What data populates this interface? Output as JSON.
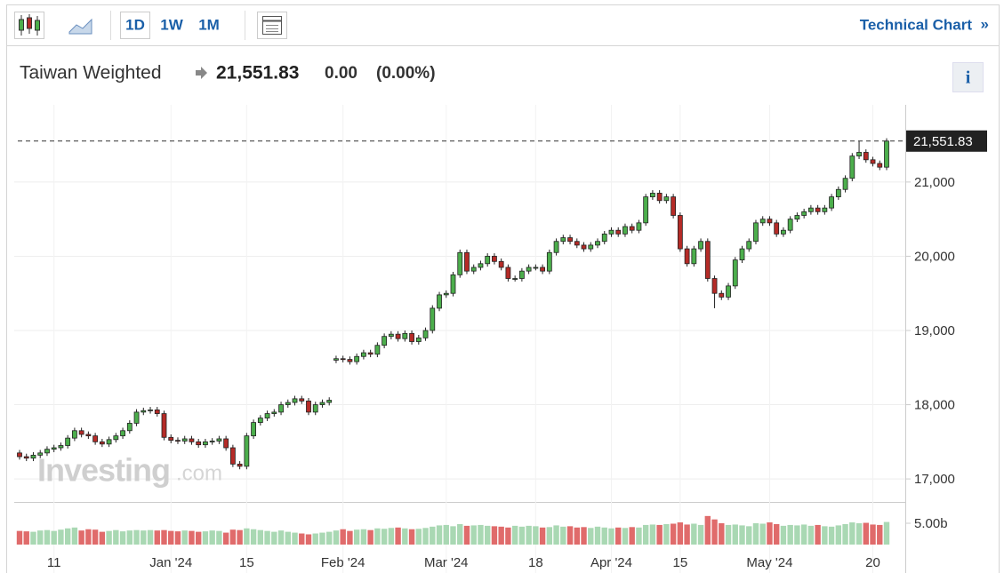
{
  "toolbar": {
    "periods": [
      "1D",
      "1W",
      "1M"
    ],
    "link": "Technical Chart",
    "link_arrow": "»",
    "info": "i"
  },
  "header": {
    "name": "Taiwan Weighted",
    "change": "0.00",
    "change_pct": "(0.00%)"
  },
  "watermark": {
    "brand": "Investing",
    "suffix": ".com"
  },
  "chart_data": {
    "type": "candlestick",
    "categories": [
      null,
      null,
      null,
      null,
      null,
      "11",
      null,
      null,
      null,
      null,
      null,
      null,
      null,
      null,
      null,
      null,
      null,
      null,
      null,
      null,
      null,
      null,
      "Jan '24",
      null,
      null,
      null,
      null,
      null,
      null,
      null,
      null,
      null,
      null,
      "15",
      null,
      null,
      null,
      null,
      null,
      null,
      null,
      null,
      null,
      null,
      null,
      null,
      null,
      "Feb '24",
      null,
      null,
      null,
      null,
      null,
      null,
      null,
      null,
      null,
      null,
      null,
      null,
      null,
      null,
      "Mar '24",
      null,
      null,
      null,
      null,
      null,
      null,
      null,
      null,
      null,
      null,
      null,
      null,
      "18",
      null,
      null,
      null,
      null,
      null,
      null,
      null,
      null,
      null,
      null,
      "Apr '24",
      null,
      null,
      null,
      null,
      null,
      null,
      null,
      null,
      null,
      "15",
      null,
      null,
      null,
      null,
      null,
      null,
      null,
      null,
      null,
      null,
      null,
      null,
      "May '24",
      null,
      null,
      null,
      null,
      null,
      null,
      null,
      null,
      null,
      null,
      null,
      null,
      null,
      null,
      "20",
      null,
      null
    ],
    "open": [
      17350,
      17300,
      17280,
      17320,
      17350,
      17400,
      17420,
      17450,
      17550,
      17650,
      17600,
      17580,
      17500,
      17470,
      17530,
      17580,
      17650,
      17750,
      17900,
      17920,
      17930,
      17880,
      17560,
      17520,
      17510,
      17540,
      17500,
      17460,
      17500,
      17510,
      17540,
      17420,
      17200,
      17170,
      17580,
      17760,
      17820,
      17880,
      17900,
      18000,
      18030,
      18080,
      18050,
      17900,
      18000,
      18030,
      18600,
      18620,
      18610,
      18580,
      18650,
      18700,
      18680,
      18800,
      18920,
      18950,
      18890,
      18960,
      18850,
      18900,
      19000,
      19300,
      19480,
      19500,
      19750,
      20050,
      19800,
      19850,
      19900,
      20000,
      19930,
      19850,
      19700,
      19700,
      19800,
      19850,
      19850,
      19800,
      20050,
      20200,
      20250,
      20200,
      20150,
      20100,
      20150,
      20200,
      20300,
      20350,
      20300,
      20400,
      20350,
      20450,
      20800,
      20850,
      20750,
      20800,
      20550,
      20100,
      19900,
      20100,
      20200,
      19700,
      19500,
      19450,
      19600,
      19950,
      20100,
      20200,
      20450,
      20500,
      20450,
      20300,
      20350,
      20500,
      20550,
      20600,
      20650,
      20600,
      20650,
      20800,
      20900,
      21050,
      21350,
      21400,
      21300,
      21250,
      21200
    ],
    "high": [
      17390,
      17340,
      17360,
      17390,
      17440,
      17460,
      17490,
      17590,
      17690,
      17690,
      17640,
      17620,
      17540,
      17570,
      17620,
      17690,
      17790,
      17940,
      17960,
      17970,
      17970,
      17920,
      17600,
      17560,
      17580,
      17580,
      17540,
      17540,
      17550,
      17580,
      17580,
      17460,
      17240,
      17620,
      17800,
      17860,
      17920,
      17940,
      18040,
      18070,
      18120,
      18120,
      18090,
      18040,
      18070,
      18100,
      18660,
      18660,
      18650,
      18690,
      18740,
      18740,
      18840,
      18960,
      18990,
      18990,
      19000,
      19000,
      18940,
      19040,
      19340,
      19520,
      19540,
      19790,
      20090,
      20090,
      19890,
      19940,
      20040,
      20040,
      19970,
      19890,
      19740,
      19840,
      19890,
      19890,
      19890,
      20090,
      20240,
      20290,
      20290,
      20240,
      20190,
      20190,
      20240,
      20340,
      20390,
      20390,
      20440,
      20440,
      20490,
      20840,
      20890,
      20890,
      20840,
      20840,
      20590,
      20140,
      20140,
      20240,
      20240,
      19740,
      19540,
      19640,
      19990,
      20140,
      20240,
      20490,
      20540,
      20540,
      20490,
      20390,
      20540,
      20590,
      20640,
      20690,
      20690,
      20690,
      20840,
      20940,
      21090,
      21390,
      21550,
      21440,
      21340,
      21290,
      21590
    ],
    "low": [
      17260,
      17240,
      17240,
      17280,
      17310,
      17360,
      17380,
      17410,
      17510,
      17560,
      17540,
      17460,
      17430,
      17430,
      17490,
      17540,
      17610,
      17710,
      17860,
      17880,
      17840,
      17520,
      17480,
      17470,
      17470,
      17460,
      17420,
      17420,
      17460,
      17470,
      17380,
      17160,
      17130,
      17130,
      17540,
      17720,
      17780,
      17840,
      17860,
      17960,
      17990,
      18010,
      17860,
      17860,
      17960,
      17990,
      18560,
      18570,
      18540,
      18540,
      18610,
      18640,
      18640,
      18760,
      18880,
      18850,
      18850,
      18810,
      18810,
      18860,
      18960,
      19260,
      19440,
      19460,
      19710,
      19760,
      19760,
      19810,
      19860,
      19890,
      19810,
      19660,
      19660,
      19660,
      19760,
      19810,
      19760,
      19760,
      20010,
      20160,
      20160,
      20110,
      20060,
      20060,
      20110,
      20160,
      20260,
      20260,
      20260,
      20310,
      20310,
      20410,
      20760,
      20710,
      20710,
      20510,
      20060,
      19860,
      19860,
      20060,
      19660,
      19300,
      19410,
      19410,
      19560,
      19910,
      20060,
      20160,
      20410,
      20410,
      20260,
      20260,
      20310,
      20460,
      20510,
      20560,
      20560,
      20560,
      20610,
      20760,
      20860,
      21010,
      21310,
      21260,
      21210,
      21160,
      21160
    ],
    "close": [
      17300,
      17280,
      17320,
      17350,
      17400,
      17420,
      17450,
      17550,
      17650,
      17600,
      17580,
      17500,
      17470,
      17530,
      17580,
      17650,
      17750,
      17900,
      17920,
      17930,
      17880,
      17560,
      17520,
      17510,
      17540,
      17500,
      17460,
      17500,
      17510,
      17540,
      17420,
      17200,
      17170,
      17580,
      17760,
      17820,
      17880,
      17900,
      18000,
      18030,
      18080,
      18050,
      17900,
      18000,
      18030,
      18060,
      18620,
      18610,
      18580,
      18650,
      18700,
      18680,
      18800,
      18920,
      18950,
      18890,
      18960,
      18850,
      18900,
      19000,
      19300,
      19480,
      19500,
      19750,
      20050,
      19800,
      19850,
      19900,
      20000,
      19930,
      19850,
      19700,
      19700,
      19800,
      19850,
      19850,
      19800,
      20050,
      20200,
      20250,
      20200,
      20150,
      20100,
      20150,
      20200,
      20300,
      20350,
      20300,
      20400,
      20350,
      20450,
      20800,
      20850,
      20750,
      20800,
      20550,
      20100,
      19900,
      20100,
      20200,
      19700,
      19500,
      19450,
      19600,
      19950,
      20100,
      20200,
      20450,
      20500,
      20450,
      20300,
      20350,
      20500,
      20550,
      20600,
      20650,
      20600,
      20650,
      20800,
      20900,
      21050,
      21350,
      21400,
      21300,
      21250,
      21200,
      21551.83
    ],
    "volume": [
      3.2,
      3.1,
      3.0,
      3.3,
      3.4,
      3.2,
      3.5,
      3.8,
      4.0,
      3.3,
      3.6,
      3.5,
      3.0,
      3.2,
      3.4,
      3.1,
      3.3,
      3.4,
      3.3,
      3.4,
      3.3,
      3.4,
      3.2,
      3.1,
      3.3,
      3.2,
      3.0,
      3.1,
      3.3,
      3.2,
      2.8,
      3.5,
      3.4,
      3.8,
      3.6,
      3.4,
      3.2,
      3.0,
      3.3,
      3.0,
      2.8,
      2.6,
      2.4,
      2.6,
      2.8,
      3.0,
      3.3,
      3.6,
      3.2,
      3.5,
      3.6,
      3.4,
      3.8,
      3.7,
      3.9,
      4.0,
      3.8,
      3.6,
      3.7,
      3.9,
      4.2,
      4.5,
      4.6,
      4.3,
      4.8,
      4.4,
      4.5,
      4.6,
      4.4,
      4.3,
      4.2,
      4.0,
      4.4,
      4.2,
      4.4,
      4.3,
      4.0,
      4.1,
      4.5,
      4.2,
      4.3,
      4.0,
      4.1,
      3.9,
      4.2,
      4.0,
      3.8,
      4.0,
      3.9,
      4.1,
      4.0,
      4.6,
      4.7,
      4.6,
      4.8,
      4.9,
      5.2,
      4.7,
      4.9,
      4.6,
      6.7,
      5.9,
      5.0,
      4.6,
      4.7,
      4.5,
      4.3,
      5.0,
      4.9,
      5.2,
      4.8,
      4.4,
      4.6,
      4.5,
      4.7,
      4.4,
      4.6,
      4.3,
      4.2,
      4.5,
      4.8,
      5.2,
      5.0,
      5.1,
      4.7,
      4.6,
      5.3
    ],
    "ylim": [
      16690,
      22040
    ],
    "yticks": [
      {
        "value": 17000,
        "label": "17,000"
      },
      {
        "value": 18000,
        "label": "18,000"
      },
      {
        "value": 19000,
        "label": "19,000"
      },
      {
        "value": 20000,
        "label": "20,000"
      },
      {
        "value": 21000,
        "label": "21,000"
      }
    ],
    "vlim": [
      0,
      10
    ],
    "vticks": [
      {
        "value": 5,
        "label": "5.00b"
      }
    ],
    "last_price": {
      "value": 21551.83,
      "label": "21,551.83"
    },
    "grid": true,
    "up_color": "#4cae4c",
    "down_color": "#b52b27",
    "up_volume_color": "#a9d8b3",
    "down_volume_color": "#e06b6b"
  }
}
